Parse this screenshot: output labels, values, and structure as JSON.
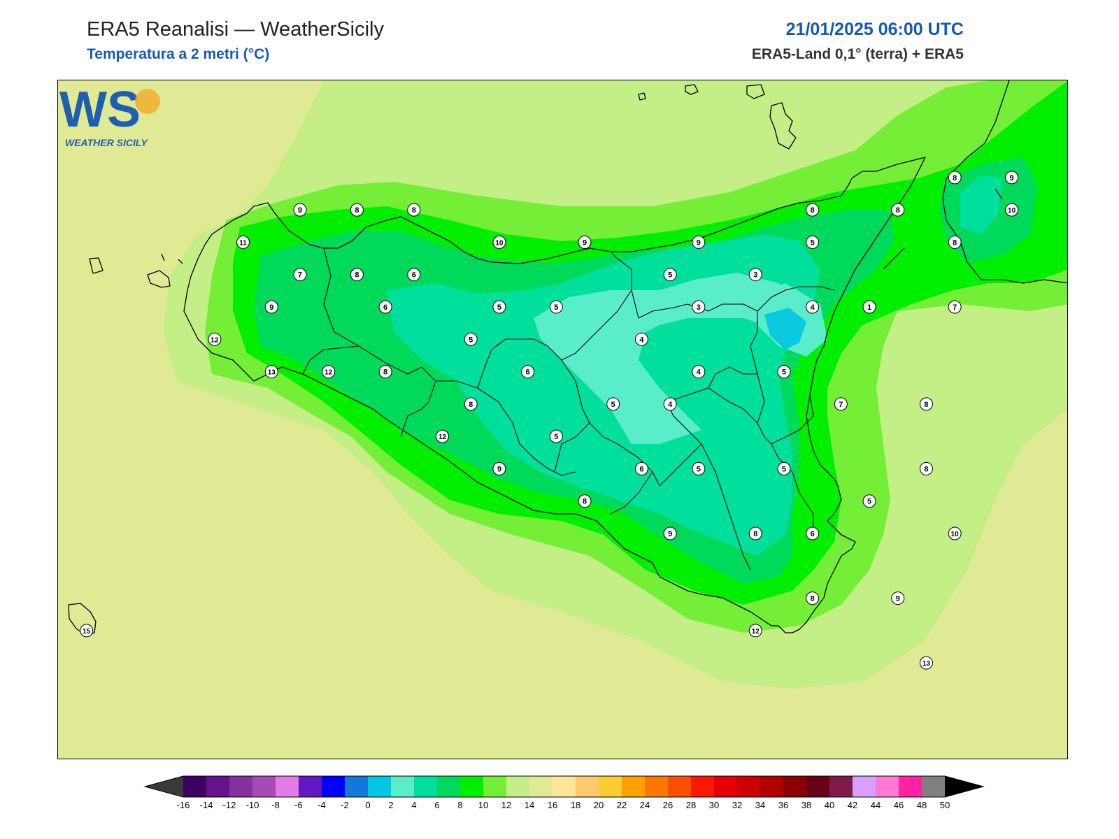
{
  "header": {
    "title": "ERA5 Reanalisi — WeatherSicily",
    "subtitle": "Temperatura a 2 metri (°C)",
    "datetime": "21/01/2025 06:00 UTC",
    "source": "ERA5-Land 0,1° (terra) + ERA5"
  },
  "logo": {
    "letters": "WS",
    "text": "WEATHER SICILY"
  },
  "colors": {
    "c10": "#66e63a",
    "c12": "#c4ee86",
    "c14": "#e0ea94",
    "c8": "#00e05a",
    "c6": "#00e691",
    "c4": "#00dfa4",
    "c2": "#5ae8c6",
    "c0": "#0bc9df"
  },
  "legend": {
    "labels": [
      "-16",
      "-14",
      "-12",
      "-10",
      "-8",
      "-6",
      "-4",
      "-2",
      "0",
      "2",
      "4",
      "6",
      "8",
      "10",
      "12",
      "14",
      "16",
      "18",
      "20",
      "22",
      "24",
      "26",
      "28",
      "30",
      "32",
      "34",
      "36",
      "38",
      "40",
      "42",
      "44",
      "46",
      "48",
      "50"
    ],
    "colors": [
      "#3d0061",
      "#66128e",
      "#84309f",
      "#a64bb6",
      "#e27ae8",
      "#6219c4",
      "#0000ff",
      "#1478d8",
      "#00c7e2",
      "#5aedc9",
      "#00df9c",
      "#00d95a",
      "#00ee00",
      "#74ee36",
      "#c4ee86",
      "#e0ea94",
      "#fde59a",
      "#fdc96e",
      "#fdcc33",
      "#fda000",
      "#fb7800",
      "#fb4f00",
      "#fb1800",
      "#e40000",
      "#cc0000",
      "#b20000",
      "#8b0000",
      "#6a0018",
      "#7f1a49",
      "#d7a0ff",
      "#ff79d2",
      "#ff22a4",
      "#808080",
      "#404040"
    ]
  },
  "stations": [
    {
      "v": "9",
      "lon": 12.57,
      "lat": 38.07
    },
    {
      "v": "8",
      "lon": 12.97,
      "lat": 38.07
    },
    {
      "v": "8",
      "lon": 13.37,
      "lat": 38.07
    },
    {
      "v": "10",
      "lon": 13.97,
      "lat": 37.97
    },
    {
      "v": "9",
      "lon": 14.57,
      "lat": 37.97
    },
    {
      "v": "9",
      "lon": 15.37,
      "lat": 37.97
    },
    {
      "v": "8",
      "lon": 16.17,
      "lat": 38.07
    },
    {
      "v": "8",
      "lon": 16.77,
      "lat": 38.07
    },
    {
      "v": "8",
      "lon": 17.17,
      "lat": 38.17
    },
    {
      "v": "9",
      "lon": 17.57,
      "lat": 38.17
    },
    {
      "v": "10",
      "lon": 17.57,
      "lat": 38.07
    },
    {
      "v": "11",
      "lon": 12.17,
      "lat": 37.97
    },
    {
      "v": "7",
      "lon": 12.57,
      "lat": 37.87
    },
    {
      "v": "8",
      "lon": 12.97,
      "lat": 37.87
    },
    {
      "v": "6",
      "lon": 13.37,
      "lat": 37.87
    },
    {
      "v": "5",
      "lon": 15.17,
      "lat": 37.87
    },
    {
      "v": "3",
      "lon": 15.77,
      "lat": 37.87
    },
    {
      "v": "5",
      "lon": 16.17,
      "lat": 37.97
    },
    {
      "v": "8",
      "lon": 17.17,
      "lat": 37.97
    },
    {
      "v": "9",
      "lon": 12.37,
      "lat": 37.77
    },
    {
      "v": "6",
      "lon": 13.17,
      "lat": 37.77
    },
    {
      "v": "5",
      "lon": 13.97,
      "lat": 37.77
    },
    {
      "v": "5",
      "lon": 14.37,
      "lat": 37.77
    },
    {
      "v": "3",
      "lon": 15.37,
      "lat": 37.77
    },
    {
      "v": "4",
      "lon": 16.17,
      "lat": 37.77
    },
    {
      "v": "1",
      "lon": 16.57,
      "lat": 37.77
    },
    {
      "v": "7",
      "lon": 17.17,
      "lat": 37.77
    },
    {
      "v": "12",
      "lon": 11.97,
      "lat": 37.67
    },
    {
      "v": "5",
      "lon": 13.77,
      "lat": 37.67
    },
    {
      "v": "4",
      "lon": 14.97,
      "lat": 37.67
    },
    {
      "v": "13",
      "lon": 12.37,
      "lat": 37.57
    },
    {
      "v": "12",
      "lon": 12.77,
      "lat": 37.57
    },
    {
      "v": "8",
      "lon": 13.17,
      "lat": 37.57
    },
    {
      "v": "6",
      "lon": 14.17,
      "lat": 37.57
    },
    {
      "v": "4",
      "lon": 15.37,
      "lat": 37.57
    },
    {
      "v": "5",
      "lon": 15.97,
      "lat": 37.57
    },
    {
      "v": "8",
      "lon": 13.77,
      "lat": 37.47
    },
    {
      "v": "5",
      "lon": 14.77,
      "lat": 37.47
    },
    {
      "v": "4",
      "lon": 15.17,
      "lat": 37.47
    },
    {
      "v": "7",
      "lon": 16.37,
      "lat": 37.47
    },
    {
      "v": "8",
      "lon": 16.97,
      "lat": 37.47
    },
    {
      "v": "12",
      "lon": 13.57,
      "lat": 37.37
    },
    {
      "v": "5",
      "lon": 14.37,
      "lat": 37.37
    },
    {
      "v": "9",
      "lon": 13.97,
      "lat": 37.27
    },
    {
      "v": "6",
      "lon": 14.97,
      "lat": 37.27
    },
    {
      "v": "5",
      "lon": 15.37,
      "lat": 37.27
    },
    {
      "v": "5",
      "lon": 15.97,
      "lat": 37.27
    },
    {
      "v": "8",
      "lon": 16.97,
      "lat": 37.27
    },
    {
      "v": "8",
      "lon": 14.57,
      "lat": 37.17
    },
    {
      "v": "5",
      "lon": 16.57,
      "lat": 37.17
    },
    {
      "v": "9",
      "lon": 15.17,
      "lat": 37.07
    },
    {
      "v": "8",
      "lon": 15.77,
      "lat": 37.07
    },
    {
      "v": "6",
      "lon": 16.17,
      "lat": 37.07
    },
    {
      "v": "10",
      "lon": 17.17,
      "lat": 37.07
    },
    {
      "v": "8",
      "lon": 16.17,
      "lat": 36.87
    },
    {
      "v": "9",
      "lon": 16.77,
      "lat": 36.87
    },
    {
      "v": "15",
      "lon": 11.07,
      "lat": 36.77
    },
    {
      "v": "12",
      "lon": 15.77,
      "lat": 36.77
    },
    {
      "v": "13",
      "lon": 16.97,
      "lat": 36.67
    }
  ]
}
